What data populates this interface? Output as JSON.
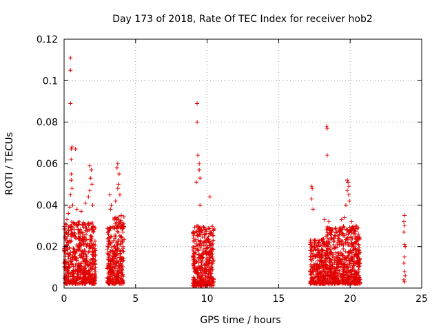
{
  "chart_data": {
    "type": "scatter",
    "title": "Day 173 of 2018, Rate Of TEC Index for receiver hob2",
    "xlabel": "GPS time / hours",
    "ylabel": "ROTI / TECUs",
    "xlim": [
      0,
      25
    ],
    "ylim": [
      0,
      0.12
    ],
    "xticks": [
      0,
      5,
      10,
      15,
      20,
      25
    ],
    "xtick_labels": [
      "0",
      "5",
      "10",
      "15",
      "20",
      "25"
    ],
    "yticks": [
      0,
      0.02,
      0.04,
      0.06,
      0.08,
      0.1,
      0.12
    ],
    "ytick_labels": [
      "0",
      "0.02",
      "0.04",
      "0.06",
      "0.08",
      "0.1",
      "0.12"
    ],
    "grid": true,
    "marker": "+",
    "series": [
      {
        "name": "hob2",
        "color": "#e00000",
        "points": [
          [
            0.45,
            0.111
          ],
          [
            0.45,
            0.105
          ],
          [
            0.45,
            0.089
          ],
          [
            0.5,
            0.067
          ],
          [
            0.55,
            0.068
          ],
          [
            0.8,
            0.067
          ],
          [
            0.5,
            0.062
          ],
          [
            0.5,
            0.055
          ],
          [
            0.5,
            0.052
          ],
          [
            0.55,
            0.048
          ],
          [
            0.45,
            0.045
          ],
          [
            1.8,
            0.059
          ],
          [
            1.9,
            0.057
          ],
          [
            1.85,
            0.053
          ],
          [
            1.95,
            0.05
          ],
          [
            1.8,
            0.047
          ],
          [
            3.75,
            0.06
          ],
          [
            3.7,
            0.058
          ],
          [
            3.85,
            0.055
          ],
          [
            3.8,
            0.05
          ],
          [
            3.75,
            0.048
          ],
          [
            3.9,
            0.045
          ],
          [
            3.2,
            0.045
          ],
          [
            3.3,
            0.04
          ],
          [
            3.25,
            0.038
          ],
          [
            3.6,
            0.042
          ],
          [
            0.2,
            0.033
          ],
          [
            0.1,
            0.031
          ],
          [
            0.3,
            0.036
          ],
          [
            0.4,
            0.039
          ],
          [
            0.6,
            0.04
          ],
          [
            0.9,
            0.038
          ],
          [
            1.2,
            0.037
          ],
          [
            1.5,
            0.041
          ],
          [
            1.7,
            0.044
          ],
          [
            2.0,
            0.04
          ],
          [
            9.3,
            0.089
          ],
          [
            9.3,
            0.08
          ],
          [
            9.35,
            0.064
          ],
          [
            9.45,
            0.06
          ],
          [
            9.45,
            0.057
          ],
          [
            9.5,
            0.053
          ],
          [
            9.25,
            0.051
          ],
          [
            9.5,
            0.04
          ],
          [
            10.2,
            0.044
          ],
          [
            17.3,
            0.049
          ],
          [
            17.35,
            0.048
          ],
          [
            17.3,
            0.043
          ],
          [
            17.4,
            0.038
          ],
          [
            18.35,
            0.078
          ],
          [
            18.4,
            0.077
          ],
          [
            18.4,
            0.064
          ],
          [
            19.8,
            0.052
          ],
          [
            19.85,
            0.051
          ],
          [
            19.9,
            0.049
          ],
          [
            19.8,
            0.047
          ],
          [
            19.9,
            0.045
          ],
          [
            19.95,
            0.042
          ],
          [
            19.7,
            0.04
          ],
          [
            19.4,
            0.033
          ],
          [
            19.6,
            0.034
          ],
          [
            20.1,
            0.032
          ],
          [
            18.2,
            0.033
          ],
          [
            18.5,
            0.032
          ],
          [
            23.8,
            0.035
          ],
          [
            23.75,
            0.032
          ],
          [
            23.8,
            0.03
          ],
          [
            23.75,
            0.027
          ],
          [
            23.8,
            0.021
          ],
          [
            23.85,
            0.02
          ],
          [
            23.8,
            0.015
          ],
          [
            23.75,
            0.012
          ],
          [
            23.8,
            0.008
          ],
          [
            23.85,
            0.006
          ],
          [
            23.75,
            0.004
          ],
          [
            23.8,
            0.003
          ]
        ],
        "dense_clusters": [
          {
            "x_range": [
              0.0,
              2.2
            ],
            "y_range": [
              0.002,
              0.032
            ]
          },
          {
            "x_range": [
              3.0,
              3.5
            ],
            "y_range": [
              0.002,
              0.03
            ]
          },
          {
            "x_range": [
              3.5,
              4.2
            ],
            "y_range": [
              0.002,
              0.035
            ]
          },
          {
            "x_range": [
              9.0,
              10.5
            ],
            "y_range": [
              0.001,
              0.03
            ]
          },
          {
            "x_range": [
              17.2,
              18.3
            ],
            "y_range": [
              0.002,
              0.024
            ]
          },
          {
            "x_range": [
              18.3,
              20.7
            ],
            "y_range": [
              0.002,
              0.03
            ]
          }
        ]
      }
    ]
  }
}
